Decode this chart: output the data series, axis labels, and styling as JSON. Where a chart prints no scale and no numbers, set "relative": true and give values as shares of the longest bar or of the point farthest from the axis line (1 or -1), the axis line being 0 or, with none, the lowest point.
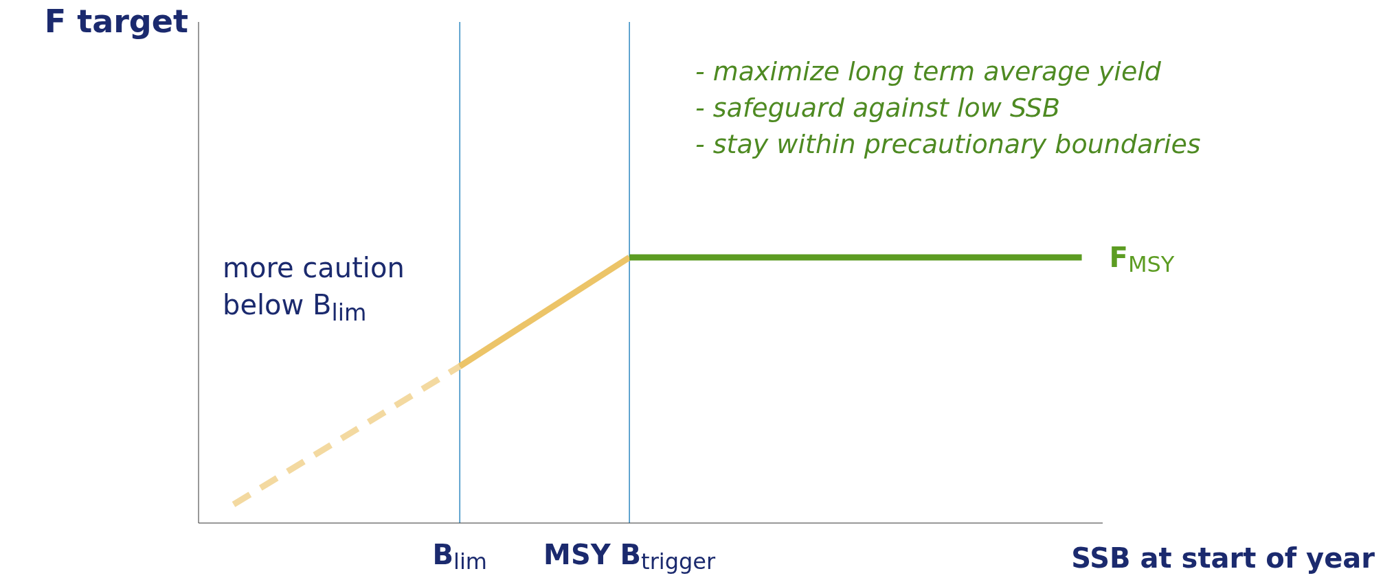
{
  "chart_data": {
    "type": "line",
    "relative": true,
    "xlabel": "SSB at start of year",
    "categories": [
      null,
      null,
      null,
      null,
      "B$_{lim}$",
      null,
      null,
      "MSY B$_{trigger}$",
      null,
      null,
      null,
      null,
      null,
      null,
      null,
      null
    ],
    "series": [
      {
        "color": "#f3d9a0",
        "line_style": "dashed",
        "values": [
          0.07,
          null,
          null,
          null,
          0.59,
          null,
          null,
          null,
          null,
          null,
          null,
          null,
          null,
          null,
          null,
          null
        ]
      },
      {
        "color": "#ecc468",
        "values": [
          null,
          null,
          null,
          null,
          0.59,
          null,
          null,
          1,
          null,
          null,
          null,
          null,
          null,
          null,
          null,
          null
        ]
      },
      {
        "name": "F$_{MSY}$",
        "color": "#5c9c22",
        "values": [
          null,
          null,
          null,
          null,
          null,
          null,
          null,
          1,
          null,
          null,
          null,
          null,
          null,
          null,
          null,
          1
        ]
      }
    ],
    "ref_lines": [
      {
        "axis": "x",
        "value": "B$_{lim}$",
        "color": "#3b8fc4"
      },
      {
        "axis": "x",
        "value": "MSY B$_{trigger}$",
        "color": "#3b8fc4"
      }
    ],
    "annotations": [
      "more caution below B$_{lim}$",
      "- maximize long term average yield",
      "- safeguard against low SSB",
      "- stay within precautionary boundaries",
      "F target"
    ],
    "grid": false
  }
}
